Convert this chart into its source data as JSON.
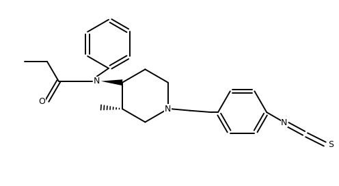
{
  "bg": "#ffffff",
  "lc": "#000000",
  "lw": 1.4,
  "fs": 9.0,
  "figsize": [
    4.96,
    2.72
  ],
  "dpi": 100,
  "xlim": [
    -0.5,
    9.5
  ],
  "ylim": [
    -0.3,
    5.2
  ]
}
